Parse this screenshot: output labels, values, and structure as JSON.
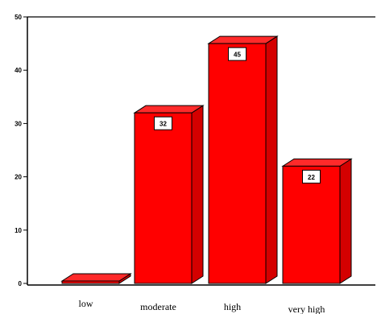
{
  "chart_data": {
    "type": "bar",
    "categories": [
      "low",
      "moderate",
      "high",
      "very high"
    ],
    "values": [
      0,
      32,
      45,
      22
    ],
    "data_labels": [
      "",
      "32",
      "45",
      "22"
    ],
    "yticks": [
      "0",
      "10",
      "20",
      "30",
      "40",
      "50"
    ],
    "ylim": [
      0,
      50
    ],
    "title": "",
    "xlabel": "",
    "ylabel": "",
    "style": "3d",
    "grid": false,
    "bar_color": "#ff0000",
    "bar_top_color": "#ff2a2a",
    "bar_side_color": "#d40000"
  }
}
